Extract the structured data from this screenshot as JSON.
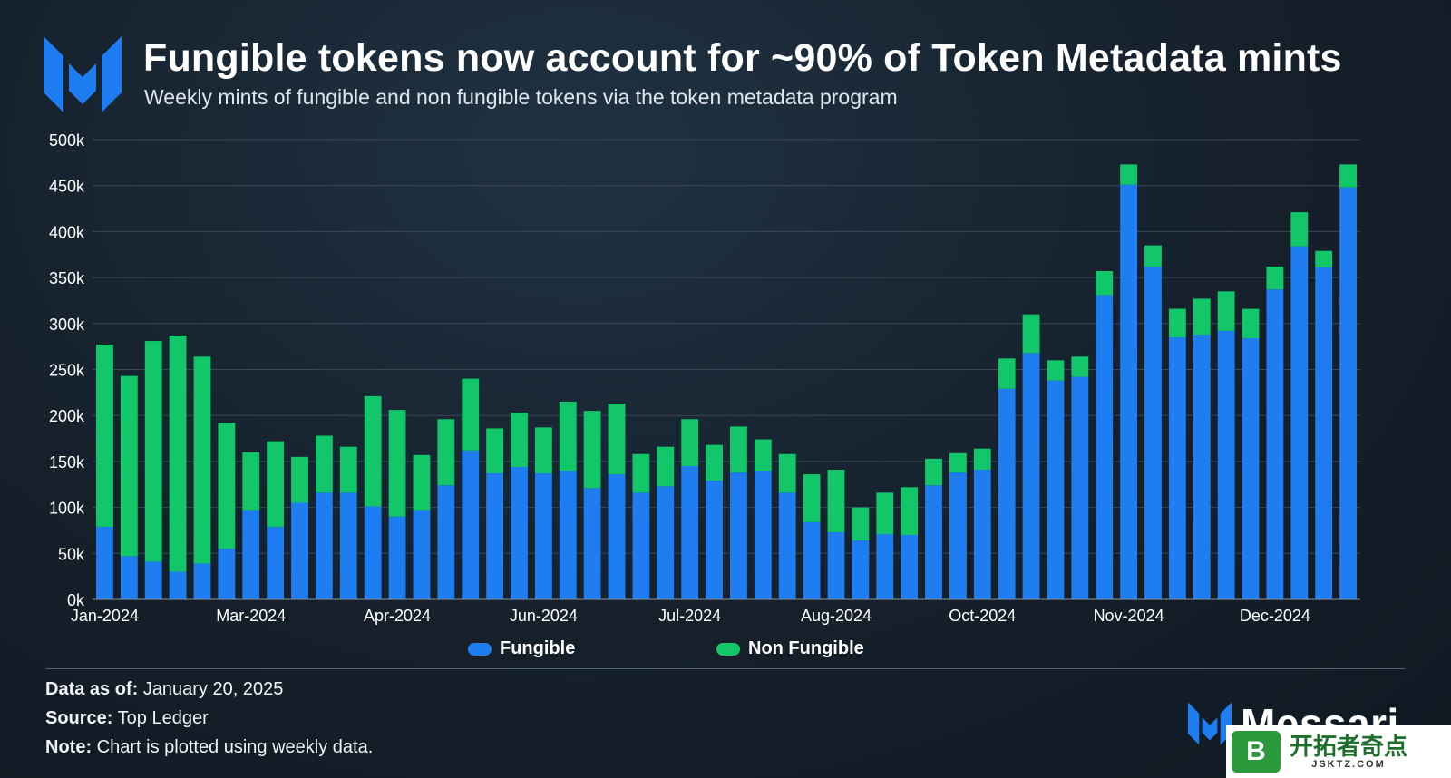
{
  "header": {
    "title": "Fungible tokens now account for ~90% of Token Metadata mints",
    "subtitle": "Weekly mints of fungible and non fungible tokens via the token metadata program"
  },
  "legend": {
    "fungible": "Fungible",
    "non_fungible": "Non Fungible"
  },
  "colors": {
    "fungible": "#1f7df2",
    "non_fungible": "#12c76a",
    "grid": "#3a4754",
    "text": "#ffffff"
  },
  "footer": {
    "data_as_of_label": "Data as of:",
    "data_as_of_value": "January 20, 2025",
    "source_label": "Source:",
    "source_value": "Top Ledger",
    "note_label": "Note:",
    "note_value": "Chart is plotted using weekly data."
  },
  "brand": {
    "name": "Messari",
    "logo_icon": "messari-logo-icon"
  },
  "watermark": {
    "badge": "B",
    "text": "开拓者奇点",
    "url": "JSKTZ.COM"
  },
  "chart_data": {
    "type": "bar",
    "stacked": true,
    "title": "Fungible tokens now account for ~90% of Token Metadata mints",
    "subtitle": "Weekly mints of fungible and non fungible tokens via the token metadata program",
    "ylim": [
      0,
      500000
    ],
    "y_ticks": [
      0,
      50000,
      100000,
      150000,
      200000,
      250000,
      300000,
      350000,
      400000,
      450000,
      500000
    ],
    "y_tick_labels": [
      "0k",
      "50k",
      "100k",
      "150k",
      "200k",
      "250k",
      "300k",
      "350k",
      "400k",
      "450k",
      "500k"
    ],
    "x_tick_labels": [
      {
        "label": "Jan-2024",
        "week": 0
      },
      {
        "label": "Mar-2024",
        "week": 6
      },
      {
        "label": "Apr-2024",
        "week": 12
      },
      {
        "label": "Jun-2024",
        "week": 18
      },
      {
        "label": "Jul-2024",
        "week": 24
      },
      {
        "label": "Aug-2024",
        "week": 30
      },
      {
        "label": "Oct-2024",
        "week": 36
      },
      {
        "label": "Nov-2024",
        "week": 42
      },
      {
        "label": "Dec-2024",
        "week": 48
      }
    ],
    "grid": true,
    "legend_position": "bottom-center",
    "series": [
      {
        "name": "Fungible",
        "values": [
          79000,
          47000,
          41000,
          30000,
          39000,
          55000,
          97000,
          79000,
          105000,
          116000,
          116000,
          101000,
          90000,
          97000,
          124000,
          162000,
          137000,
          144000,
          137000,
          140000,
          121000,
          136000,
          116000,
          123000,
          145000,
          129000,
          138000,
          140000,
          116000,
          84000,
          73000,
          64000,
          71000,
          70000,
          124000,
          138000,
          141000,
          229000,
          268000,
          238000,
          242000,
          331000,
          451000,
          362000,
          285000,
          288000,
          292000,
          284000,
          337000,
          384000,
          361000,
          448000
        ]
      },
      {
        "name": "Non Fungible",
        "values": [
          198000,
          196000,
          240000,
          257000,
          225000,
          137000,
          63000,
          93000,
          50000,
          62000,
          50000,
          120000,
          116000,
          60000,
          72000,
          78000,
          49000,
          59000,
          50000,
          75000,
          84000,
          77000,
          42000,
          43000,
          51000,
          39000,
          50000,
          34000,
          42000,
          52000,
          68000,
          36000,
          45000,
          52000,
          29000,
          21000,
          23000,
          33000,
          42000,
          22000,
          22000,
          26000,
          22000,
          23000,
          31000,
          39000,
          43000,
          32000,
          25000,
          37000,
          18000,
          25000
        ]
      }
    ]
  }
}
